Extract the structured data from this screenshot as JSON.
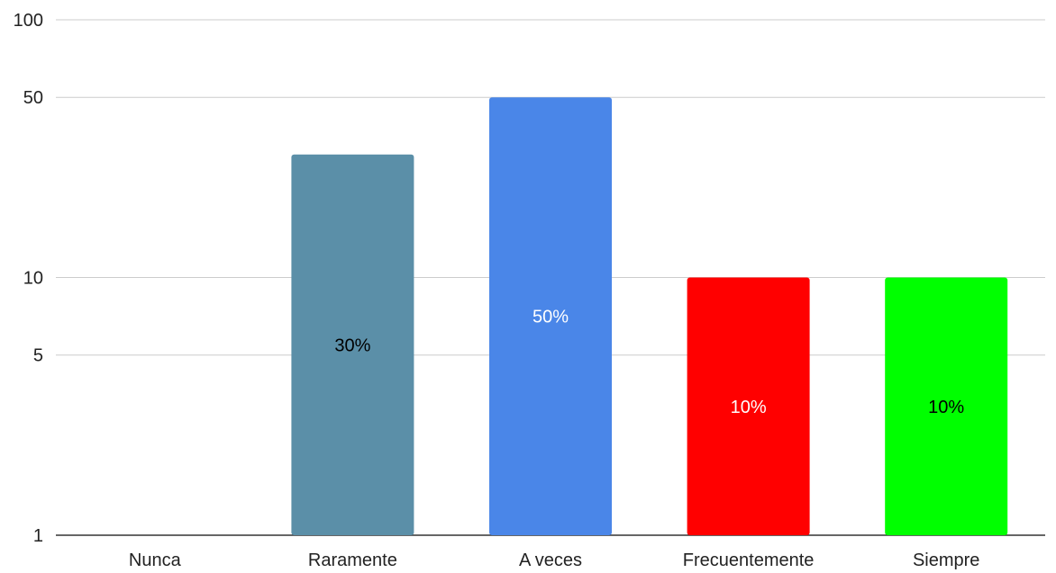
{
  "chart_data": {
    "type": "bar",
    "scale": "log",
    "categories": [
      "Nunca",
      "Raramente",
      "A veces",
      "Frecuentemente",
      "Siempre"
    ],
    "values": [
      0,
      30,
      50,
      10,
      10
    ],
    "data_labels": [
      "",
      "30%",
      "50%",
      "10%",
      "10%"
    ],
    "colors": [
      "#5b8fa8",
      "#5b8fa8",
      "#4a86e8",
      "#ff0000",
      "#00ff00"
    ],
    "label_colors": [
      "#000000",
      "#000000",
      "#ffffff",
      "#ffffff",
      "#000000"
    ],
    "ylim": [
      1,
      100
    ],
    "yticks": [
      1,
      5,
      10,
      50,
      100
    ],
    "ytick_labels": [
      "1",
      "5",
      "10",
      "50",
      "100"
    ],
    "grid": true,
    "legend": "none"
  }
}
